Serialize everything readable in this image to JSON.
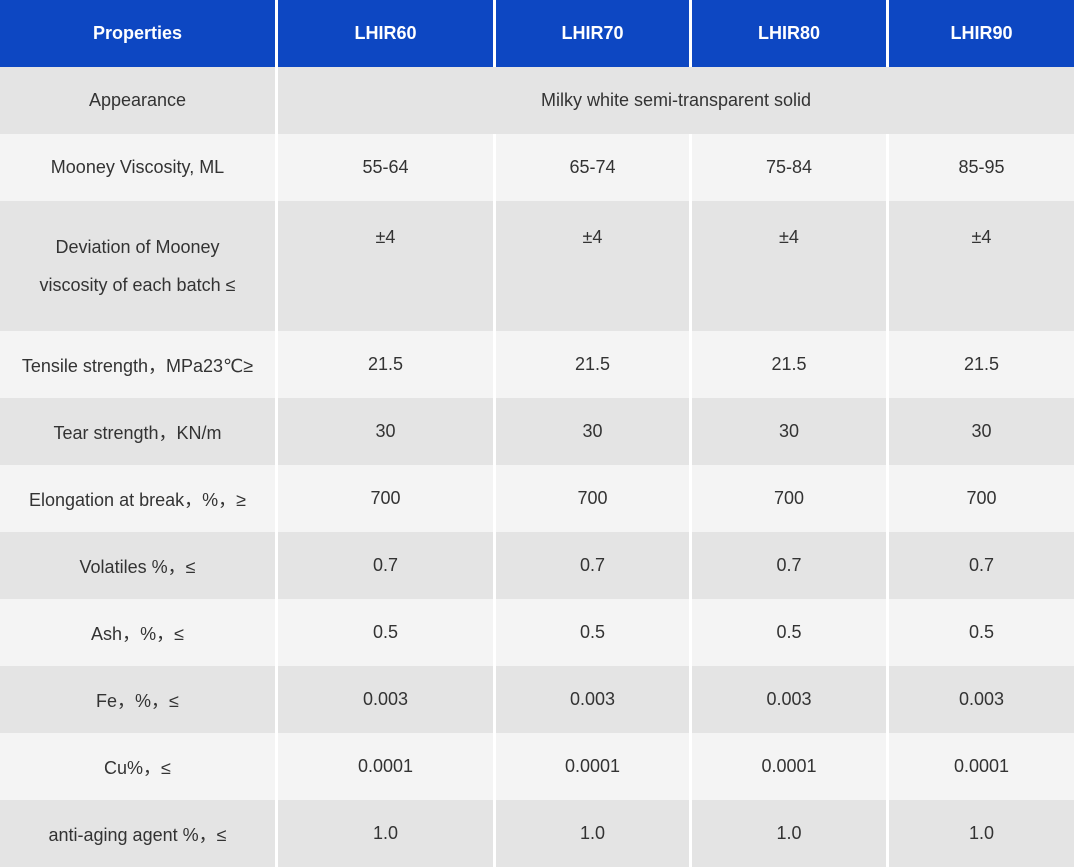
{
  "header": {
    "properties": "Properties",
    "grades": [
      "LHIR60",
      "LHIR70",
      "LHIR80",
      "LHIR90"
    ]
  },
  "rows": [
    {
      "label": "Appearance",
      "merged": "Milky white semi-transparent solid"
    },
    {
      "label": "Mooney Viscosity, ML",
      "values": [
        "55-64",
        "65-74",
        "75-84",
        "85-95"
      ]
    },
    {
      "label": "Deviation of Mooney viscosity of each batch ≤",
      "label_line1": "Deviation of Mooney",
      "label_line2": "viscosity of each batch  ≤",
      "values": [
        "±4",
        "±4",
        "±4",
        "±4"
      ]
    },
    {
      "label": "Tensile strength，MPa23℃≥",
      "values": [
        "21.5",
        "21.5",
        "21.5",
        "21.5"
      ]
    },
    {
      "label": "Tear strength，KN/m",
      "values": [
        "30",
        "30",
        "30",
        "30"
      ]
    },
    {
      "label": "Elongation at break，%，≥",
      "values": [
        "700",
        "700",
        "700",
        "700"
      ]
    },
    {
      "label": "Volatiles %，≤",
      "values": [
        "0.7",
        "0.7",
        "0.7",
        "0.7"
      ]
    },
    {
      "label": "Ash，%，≤",
      "values": [
        "0.5",
        "0.5",
        "0.5",
        "0.5"
      ]
    },
    {
      "label": "Fe，%，≤",
      "values": [
        "0.003",
        "0.003",
        "0.003",
        "0.003"
      ]
    },
    {
      "label": "Cu%，≤",
      "values": [
        "0.0001",
        "0.0001",
        "0.0001",
        "0.0001"
      ]
    },
    {
      "label": "anti-aging agent %，≤",
      "values": [
        "1.0",
        "1.0",
        "1.0",
        "1.0"
      ]
    }
  ],
  "colors": {
    "header_bg": "#0d47c2",
    "row_dark": "#e4e4e4",
    "row_light": "#f4f4f4",
    "text": "#333333"
  }
}
